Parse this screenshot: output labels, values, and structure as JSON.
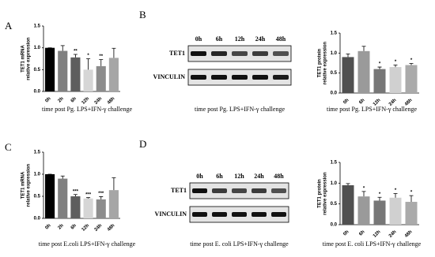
{
  "panels": [
    "A",
    "B",
    "C",
    "D"
  ],
  "chart_data": [
    {
      "type": "bar",
      "ylabel": [
        "TET1 mRNA",
        "relative expression"
      ],
      "categories": [
        "0h",
        "2h",
        "6h",
        "12h",
        "24h",
        "48h"
      ],
      "values": [
        1.0,
        0.93,
        0.78,
        0.5,
        0.58,
        0.77
      ],
      "errors": [
        0,
        0.12,
        0.07,
        0.25,
        0.15,
        0.22
      ],
      "annotations": [
        null,
        null,
        "**",
        "*",
        "**",
        null
      ],
      "colors": [
        "#000000",
        "#808080",
        "#5e5e5e",
        "#d6d6d6",
        "#8c8c8c",
        "#a6a6a6"
      ],
      "ylim": [
        0,
        1.5
      ],
      "yticks": [
        {
          "value": 0,
          "label": "0.0"
        },
        0.5,
        {
          "value": 1,
          "label": "1.0"
        },
        1.5
      ],
      "xlabel": "time post Pg. LPS+IFN-γ challenge"
    },
    {
      "type": "bar",
      "ylabel": [
        "TET1 protein",
        "relative expression"
      ],
      "categories": [
        "0h",
        "6h",
        "12h",
        "24h",
        "48h"
      ],
      "values": [
        0.9,
        1.05,
        0.6,
        0.65,
        0.7
      ],
      "errors": [
        0.08,
        0.12,
        0.05,
        0.05,
        0.04
      ],
      "annotations": [
        null,
        null,
        "*",
        "*",
        "*"
      ],
      "colors": [
        "#505050",
        "#9a9a9a",
        "#777777",
        "#d0d0d0",
        "#aaaaaa"
      ],
      "ylim": [
        0,
        1.5
      ],
      "yticks": [
        {
          "value": 0,
          "label": "0.0"
        },
        0.5,
        {
          "value": 1,
          "label": "1.0"
        },
        1.5
      ],
      "xlabel": "time post Pg. LPS+IFN-γ challenge"
    },
    {
      "type": "bar",
      "ylabel": [
        "TET1 mRNA",
        "relative expression"
      ],
      "categories": [
        "0h",
        "2h",
        "6h",
        "12h",
        "24h",
        "48h"
      ],
      "values": [
        1.0,
        0.9,
        0.5,
        0.45,
        0.43,
        0.64
      ],
      "errors": [
        0,
        0.06,
        0.04,
        0.02,
        0.06,
        0.28
      ],
      "annotations": [
        null,
        null,
        "***",
        "***",
        "***",
        null
      ],
      "colors": [
        "#000000",
        "#808080",
        "#5e5e5e",
        "#d6d6d6",
        "#8c8c8c",
        "#a6a6a6"
      ],
      "ylim": [
        0,
        1.5
      ],
      "yticks": [
        {
          "value": 0,
          "label": "0.0"
        },
        0.5,
        {
          "value": 1,
          "label": "1.0"
        },
        1.5
      ],
      "xlabel": "time post E.coli LPS+IFN-γ challenge"
    },
    {
      "type": "bar",
      "ylabel": [
        "TET1 protein",
        "relative expression"
      ],
      "categories": [
        "0h",
        "6h",
        "12h",
        "24h",
        "48h"
      ],
      "values": [
        0.95,
        0.68,
        0.58,
        0.65,
        0.55
      ],
      "errors": [
        0.04,
        0.12,
        0.08,
        0.1,
        0.15
      ],
      "annotations": [
        null,
        "*",
        "*",
        "*",
        "*"
      ],
      "colors": [
        "#505050",
        "#9a9a9a",
        "#777777",
        "#d0d0d0",
        "#aaaaaa"
      ],
      "ylim": [
        0,
        1.5
      ],
      "yticks": [
        {
          "value": 0,
          "label": "0.0"
        },
        0.5,
        {
          "value": 1,
          "label": "1.0"
        },
        1.5
      ],
      "xlabel": "time post E. coli LPS+IFN-γ challenge"
    }
  ],
  "blots": [
    {
      "lanes": [
        "0h",
        "6h",
        "12h",
        "24h",
        "48h"
      ],
      "rows": [
        "TET1",
        "VINCULIN"
      ],
      "caption": "time post Pg. LPS+IFN-γ challenge"
    },
    {
      "lanes": [
        "0h",
        "6h",
        "12h",
        "24h",
        "48h"
      ],
      "rows": [
        "TET1",
        "VINCULIN"
      ],
      "caption": "time post E. coli LPS+IFN-γ challenge"
    }
  ]
}
